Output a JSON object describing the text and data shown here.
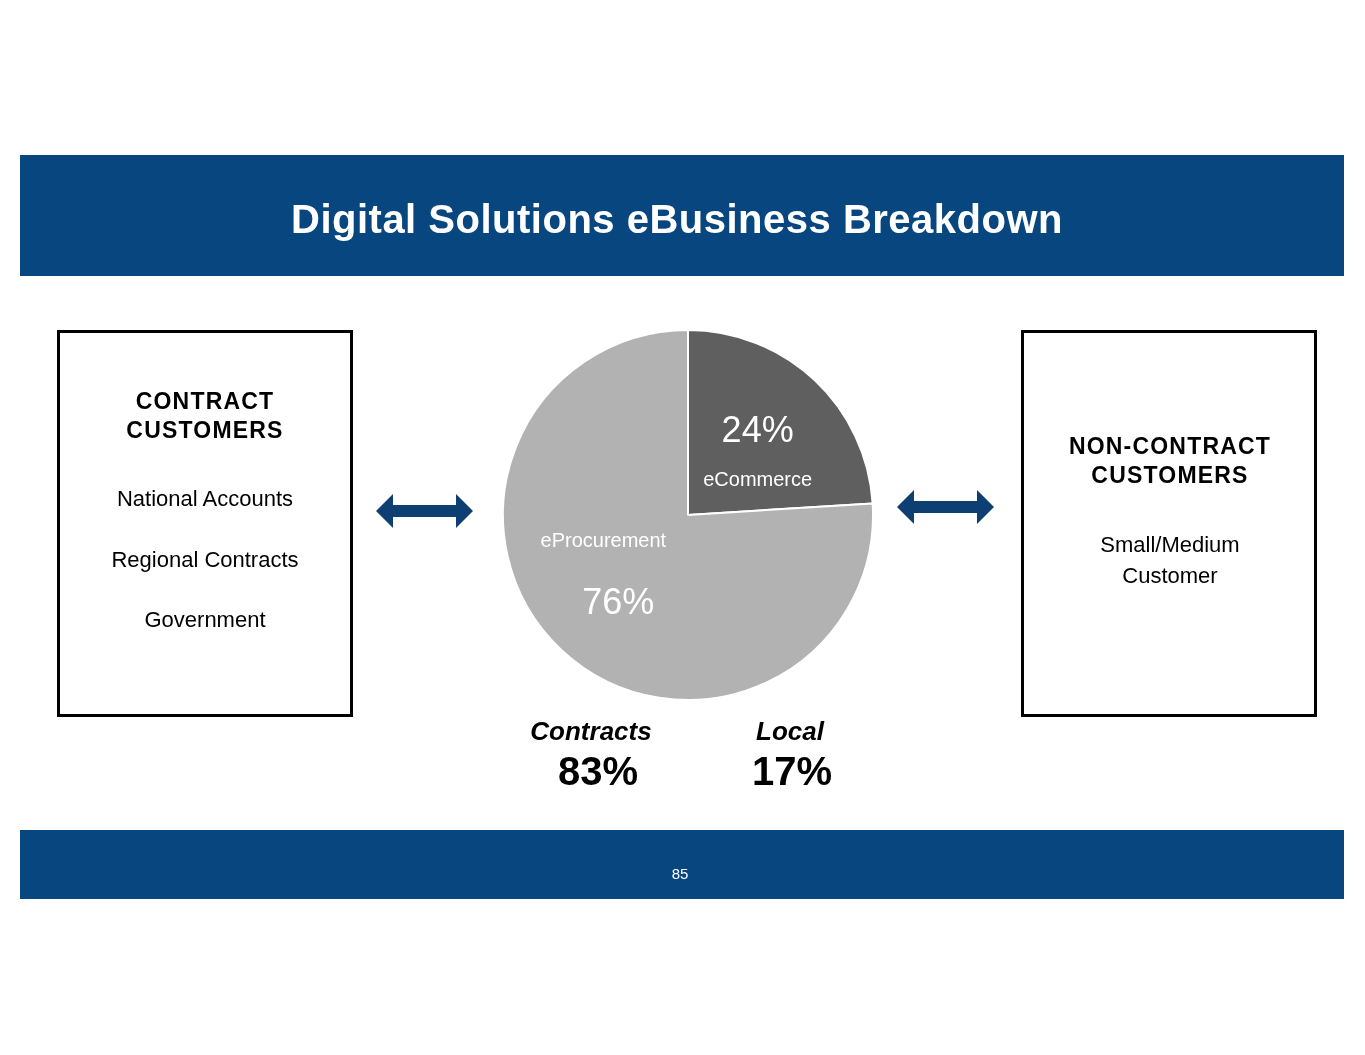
{
  "chart_data": {
    "type": "pie",
    "title": "Digital Solutions eBusiness Breakdown",
    "categories": [
      "eCommerce",
      "eProcurement"
    ],
    "values": [
      24,
      76
    ],
    "colors": [
      "#5f5f5f",
      "#b2b2b2"
    ],
    "value_labels": [
      "24%",
      "76%"
    ],
    "annotations": [
      "CONTRACT CUSTOMERS",
      "National Accounts",
      "Regional Contracts",
      "Government",
      "NON-CONTRACT CUSTOMERS",
      "Small/Medium Customer",
      "Contracts",
      "83%",
      "Local",
      "17%",
      "85"
    ]
  }
}
